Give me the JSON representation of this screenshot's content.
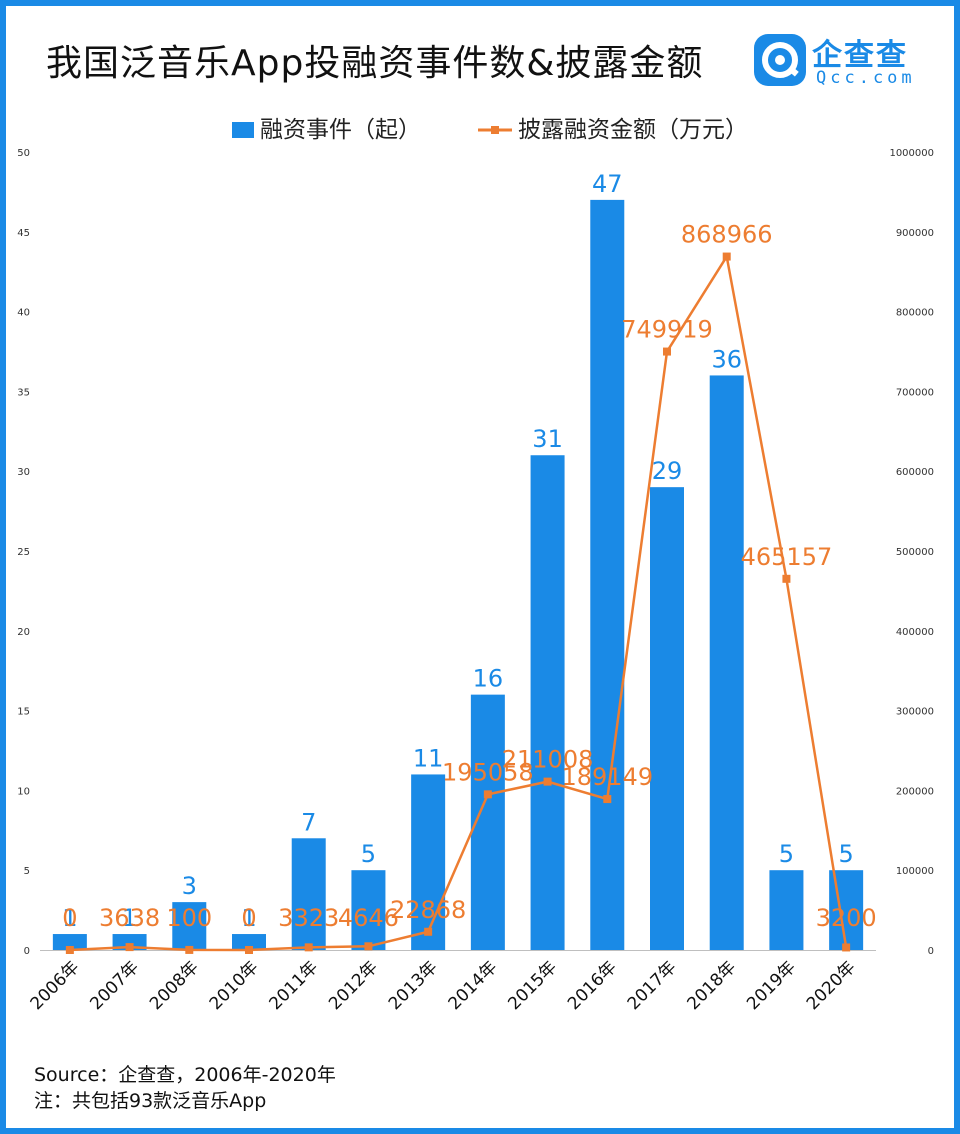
{
  "title": "我国泛音乐App投融资事件数&披露金额",
  "logo": {
    "text": "企查查",
    "sub": "Qcc.com"
  },
  "footer": {
    "source": "Source：企查查，2006年-2020年",
    "note": "注：共包括93款泛音乐App"
  },
  "colors": {
    "bar": "#1a8ae6",
    "line": "#ed7d31",
    "frame": "#1a8ae6"
  },
  "chart_data": {
    "type": "bar",
    "title": "我国泛音乐App投融资事件数&披露金额",
    "categories": [
      "2006年",
      "2007年",
      "2008年",
      "2010年",
      "2011年",
      "2012年",
      "2013年",
      "2014年",
      "2015年",
      "2016年",
      "2017年",
      "2018年",
      "2019年",
      "2020年"
    ],
    "legend_position": "top",
    "grid": false,
    "series": [
      {
        "name": "融资事件（起）",
        "type": "bar",
        "axis": "left",
        "values": [
          1,
          1,
          3,
          1,
          7,
          5,
          11,
          16,
          31,
          47,
          29,
          36,
          5,
          5
        ],
        "labels": [
          "1",
          "1",
          "3",
          "1",
          "7",
          "5",
          "11",
          "16",
          "31",
          "47",
          "29",
          "36",
          "5",
          "5"
        ]
      },
      {
        "name": "披露融资金额（万元）",
        "type": "line",
        "axis": "right",
        "values": [
          0,
          3638,
          100,
          0,
          3323,
          4646,
          22868,
          195058,
          211008,
          189149,
          749919,
          868966,
          465157,
          3200
        ],
        "labels": [
          "0",
          "3638",
          "100",
          "0",
          "3323",
          "4646",
          "22868",
          "195058",
          "211008",
          "189149",
          "749919",
          "868966",
          "465157",
          "3200"
        ]
      }
    ],
    "y_left": {
      "range": [
        0,
        50
      ],
      "ticks": [
        "0",
        "5",
        "10",
        "15",
        "20",
        "25",
        "30",
        "35",
        "40",
        "45",
        "50"
      ]
    },
    "y_right": {
      "range": [
        0,
        1000000
      ],
      "ticks": [
        "0",
        "100000",
        "200000",
        "300000",
        "400000",
        "500000",
        "600000",
        "700000",
        "800000",
        "900000",
        "1000000"
      ]
    }
  }
}
